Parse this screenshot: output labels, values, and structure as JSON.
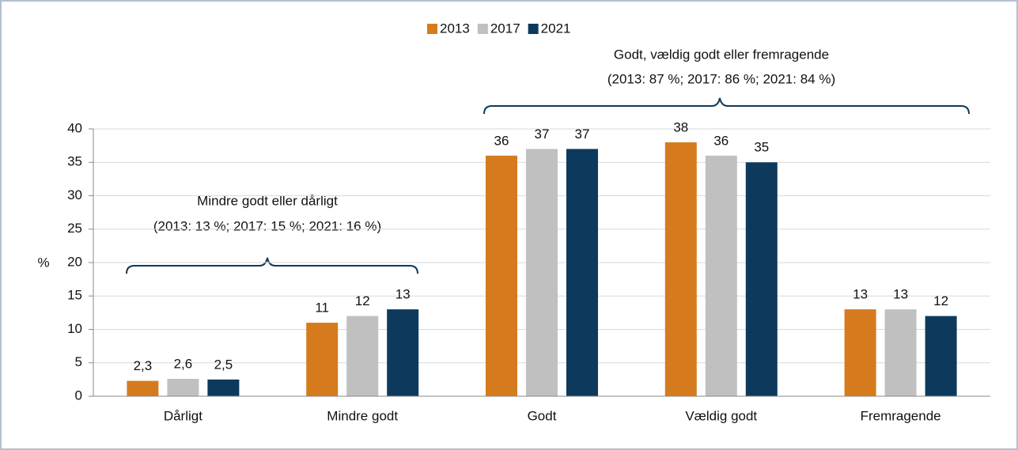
{
  "chart_data": {
    "type": "bar",
    "categories": [
      "Dårligt",
      "Mindre godt",
      "Godt",
      "Vældig godt",
      "Fremragende"
    ],
    "series": [
      {
        "name": "2013",
        "color": "#d57b1e",
        "values": [
          2.3,
          11,
          36,
          38,
          13
        ],
        "value_labels": [
          "2,3",
          "11",
          "36",
          "38",
          "13"
        ]
      },
      {
        "name": "2017",
        "color": "#c0c0c0",
        "values": [
          2.6,
          12,
          37,
          36,
          13
        ],
        "value_labels": [
          "2,6",
          "12",
          "37",
          "36",
          "13"
        ]
      },
      {
        "name": "2021",
        "color": "#0d3a5c",
        "values": [
          2.5,
          13,
          37,
          35,
          12
        ],
        "value_labels": [
          "2,5",
          "13",
          "37",
          "35",
          "12"
        ]
      }
    ],
    "ylabel": "%",
    "ylim": [
      0,
      40
    ],
    "yticks": [
      0,
      5,
      10,
      15,
      20,
      25,
      30,
      35,
      40
    ],
    "grid": true,
    "legend": "top",
    "annotations": [
      "Mindre godt eller dårligt",
      "(2013: 13 %; 2017: 15 %; 2021: 16 %)",
      "Godt, vældig godt eller fremragende",
      "(2013: 87 %; 2017: 86 %; 2021: 84 %)"
    ]
  }
}
